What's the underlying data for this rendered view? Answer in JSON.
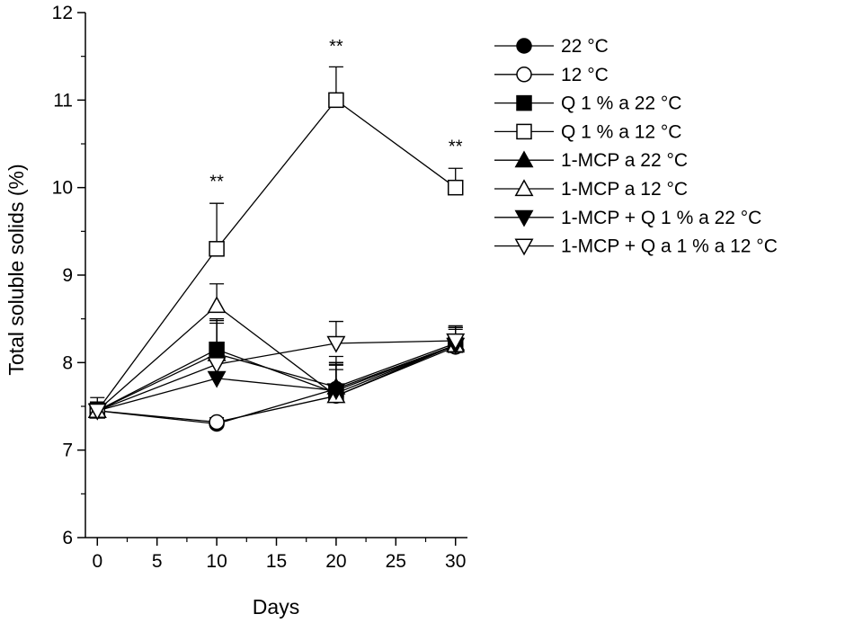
{
  "chart_data": {
    "type": "line",
    "title": "",
    "xlabel": "Days",
    "ylabel": "Total soluble solids (%)",
    "xlim": [
      -1,
      31
    ],
    "ylim": [
      6,
      12
    ],
    "xticks": [
      0,
      5,
      10,
      15,
      20,
      25,
      30
    ],
    "yticks": [
      6,
      7,
      8,
      9,
      10,
      11,
      12
    ],
    "x": [
      0,
      10,
      20,
      30
    ],
    "legend_position": "right",
    "series": [
      {
        "name": "22 °C",
        "marker": "circle",
        "filled": true,
        "values": [
          7.45,
          7.3,
          7.7,
          8.2
        ],
        "errors": [
          0.1,
          0.05,
          0.3,
          0.2
        ]
      },
      {
        "name": "12 °C",
        "marker": "circle",
        "filled": false,
        "values": [
          7.45,
          7.32,
          7.62,
          8.18
        ],
        "errors": [
          0.1,
          0.05,
          0.3,
          0.2
        ]
      },
      {
        "name": "Q 1 % a 22 °C",
        "marker": "square",
        "filled": true,
        "values": [
          7.45,
          8.15,
          7.65,
          8.2
        ],
        "errors": [
          0.1,
          0.35,
          0.35,
          0.2
        ]
      },
      {
        "name": "Q 1 % a 12 °C",
        "marker": "square",
        "filled": false,
        "values": [
          7.45,
          9.3,
          11.0,
          10.0
        ],
        "errors": [
          0.15,
          0.52,
          0.38,
          0.22
        ]
      },
      {
        "name": "1-MCP a 22 °C",
        "marker": "triangle-up",
        "filled": true,
        "values": [
          7.45,
          8.1,
          7.72,
          8.22
        ],
        "errors": [
          0.1,
          0.35,
          0.35,
          0.2
        ]
      },
      {
        "name": "1-MCP a 12 °C",
        "marker": "triangle-up",
        "filled": false,
        "values": [
          7.45,
          8.65,
          7.62,
          8.2
        ],
        "errors": [
          0.1,
          0.25,
          0.35,
          0.2
        ]
      },
      {
        "name": "1-MCP + Q 1 % a 22 °C",
        "marker": "triangle-down",
        "filled": true,
        "values": [
          7.45,
          7.82,
          7.68,
          8.2
        ],
        "errors": [
          0.1,
          0.3,
          0.3,
          0.2
        ]
      },
      {
        "name": "1-MCP + Q a 1 % a 12 °C",
        "marker": "triangle-down",
        "filled": false,
        "values": [
          7.45,
          7.98,
          8.22,
          8.25
        ],
        "errors": [
          0.1,
          0.5,
          0.25,
          0.15
        ]
      }
    ],
    "annotations": [
      {
        "x": 10,
        "y": 10.0,
        "text": "**"
      },
      {
        "x": 20,
        "y": 11.55,
        "text": "**"
      },
      {
        "x": 30,
        "y": 10.4,
        "text": "**"
      }
    ]
  }
}
